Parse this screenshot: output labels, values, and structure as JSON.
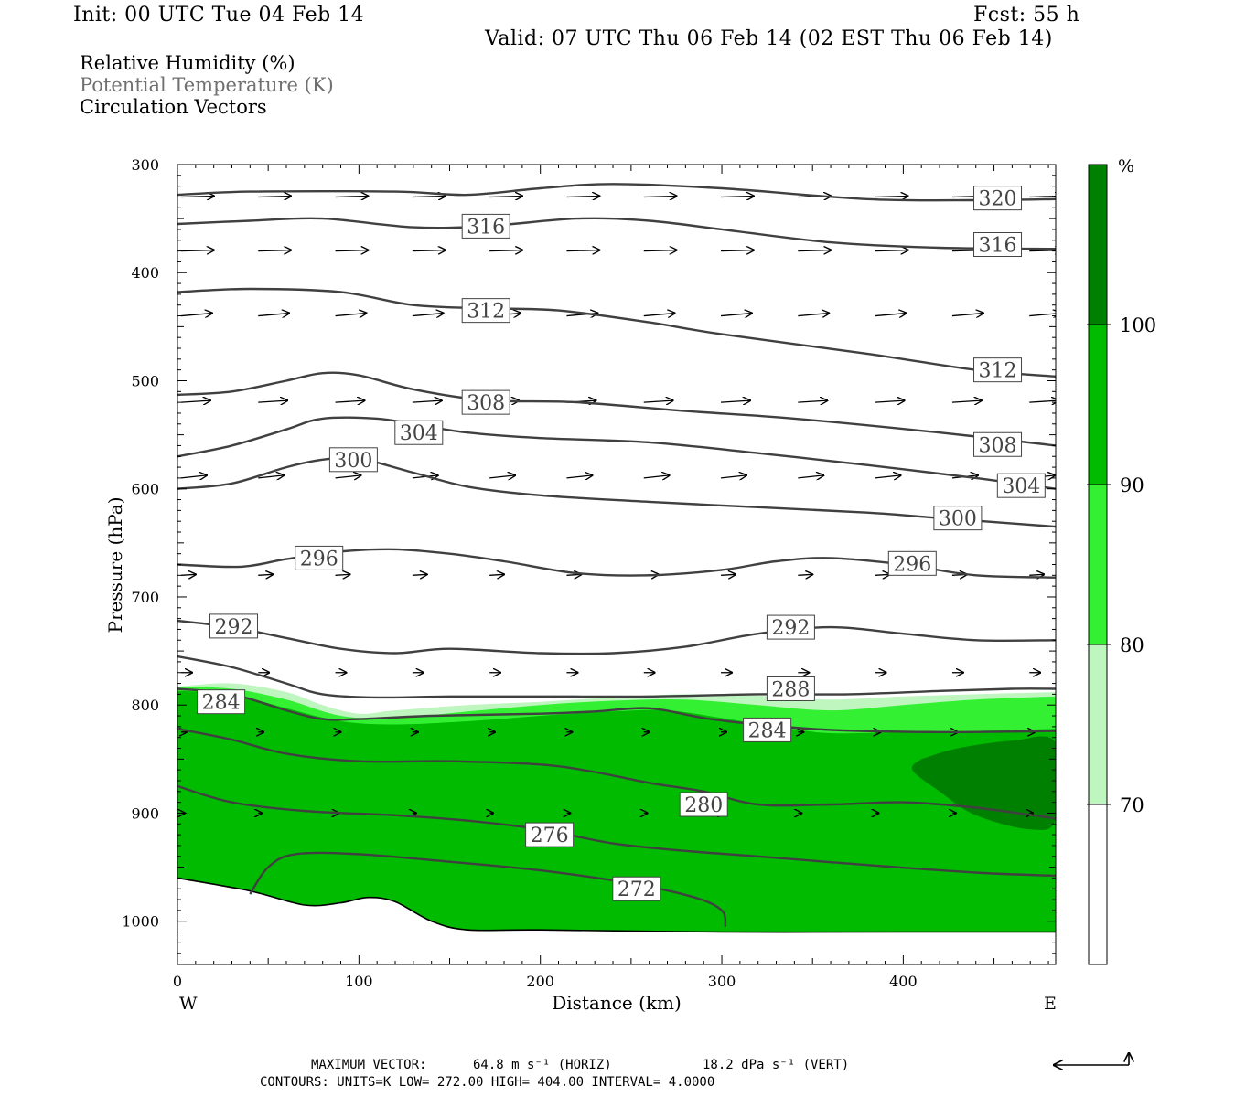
{
  "header": {
    "init": "Init: 00 UTC Tue 04 Feb 14",
    "fcst": "Fcst:   55 h",
    "valid": "Valid: 07 UTC Thu 06 Feb 14 (02 EST Thu 06 Feb 14)"
  },
  "fields": [
    {
      "label": "Relative Humidity (%)",
      "style": "normal"
    },
    {
      "label": "Potential Temperature (K)",
      "style": "grey"
    },
    {
      "label": "Circulation Vectors",
      "style": "normal"
    }
  ],
  "chart_data": {
    "type": "cross-section contour",
    "xlabel": "Distance (km)",
    "ylabel": "Pressure (hPa)",
    "xlim": [
      0,
      484
    ],
    "ylim": [
      1040,
      300
    ],
    "x_ticks": [
      0,
      100,
      200,
      300,
      400
    ],
    "y_ticks": [
      300,
      400,
      500,
      600,
      700,
      800,
      900,
      1000
    ],
    "x_end_labels": {
      "left": "W",
      "right": "E"
    },
    "colorbar": {
      "unit": "%",
      "levels": [
        70,
        80,
        90,
        100
      ],
      "colors": [
        "#ffffff",
        "#bff5bf",
        "#33f033",
        "#00bb00",
        "#008000"
      ]
    },
    "contour_color": "#404040",
    "theta_contours": [
      {
        "label": "320",
        "points": [
          [
            0,
            328
          ],
          [
            40,
            325
          ],
          [
            120,
            325
          ],
          [
            160,
            328
          ],
          [
            200,
            322
          ],
          [
            240,
            318
          ],
          [
            300,
            322
          ],
          [
            380,
            332
          ],
          [
            440,
            333
          ],
          [
            484,
            332
          ]
        ],
        "labels": [
          [
            452,
            331
          ]
        ]
      },
      {
        "label": "316",
        "points": [
          [
            0,
            355
          ],
          [
            40,
            352
          ],
          [
            80,
            350
          ],
          [
            130,
            358
          ],
          [
            170,
            357
          ],
          [
            220,
            350
          ],
          [
            260,
            352
          ],
          [
            300,
            360
          ],
          [
            360,
            372
          ],
          [
            420,
            377
          ],
          [
            484,
            378
          ]
        ],
        "labels": [
          [
            170,
            357
          ],
          [
            452,
            374
          ]
        ]
      },
      {
        "label": "312",
        "points": [
          [
            0,
            418
          ],
          [
            40,
            415
          ],
          [
            90,
            418
          ],
          [
            130,
            430
          ],
          [
            170,
            433
          ],
          [
            210,
            435
          ],
          [
            260,
            446
          ],
          [
            300,
            457
          ],
          [
            380,
            475
          ],
          [
            440,
            490
          ],
          [
            484,
            496
          ]
        ],
        "labels": [
          [
            170,
            435
          ],
          [
            452,
            490
          ]
        ]
      },
      {
        "label": "308",
        "points": [
          [
            0,
            513
          ],
          [
            30,
            510
          ],
          [
            60,
            500
          ],
          [
            80,
            493
          ],
          [
            100,
            495
          ],
          [
            130,
            508
          ],
          [
            170,
            518
          ],
          [
            220,
            520
          ],
          [
            280,
            528
          ],
          [
            340,
            535
          ],
          [
            420,
            548
          ],
          [
            484,
            560
          ]
        ],
        "labels": [
          [
            170,
            520
          ],
          [
            452,
            559
          ]
        ]
      },
      {
        "label": "304",
        "points": [
          [
            0,
            570
          ],
          [
            30,
            560
          ],
          [
            60,
            545
          ],
          [
            80,
            535
          ],
          [
            110,
            535
          ],
          [
            130,
            540
          ],
          [
            160,
            548
          ],
          [
            200,
            553
          ],
          [
            260,
            557
          ],
          [
            320,
            567
          ],
          [
            380,
            578
          ],
          [
            440,
            590
          ],
          [
            484,
            600
          ]
        ],
        "labels": [
          [
            133,
            548
          ],
          [
            465,
            597
          ]
        ]
      },
      {
        "label": "300",
        "points": [
          [
            0,
            600
          ],
          [
            30,
            595
          ],
          [
            60,
            580
          ],
          [
            80,
            573
          ],
          [
            100,
            572
          ],
          [
            130,
            585
          ],
          [
            160,
            598
          ],
          [
            200,
            606
          ],
          [
            260,
            612
          ],
          [
            320,
            617
          ],
          [
            380,
            622
          ],
          [
            420,
            627
          ],
          [
            460,
            632
          ],
          [
            484,
            635
          ]
        ],
        "labels": [
          [
            97,
            573
          ],
          [
            430,
            627
          ]
        ]
      },
      {
        "label": "296",
        "points": [
          [
            0,
            670
          ],
          [
            35,
            672
          ],
          [
            60,
            665
          ],
          [
            90,
            658
          ],
          [
            120,
            656
          ],
          [
            150,
            660
          ],
          [
            180,
            667
          ],
          [
            220,
            678
          ],
          [
            260,
            680
          ],
          [
            300,
            675
          ],
          [
            330,
            667
          ],
          [
            360,
            664
          ],
          [
            400,
            670
          ],
          [
            440,
            680
          ],
          [
            484,
            682
          ]
        ],
        "labels": [
          [
            78,
            664
          ],
          [
            405,
            669
          ]
        ]
      },
      {
        "label": "292",
        "points": [
          [
            0,
            722
          ],
          [
            30,
            728
          ],
          [
            60,
            738
          ],
          [
            90,
            748
          ],
          [
            120,
            752
          ],
          [
            150,
            748
          ],
          [
            200,
            752
          ],
          [
            240,
            752
          ],
          [
            280,
            746
          ],
          [
            320,
            734
          ],
          [
            360,
            728
          ],
          [
            400,
            734
          ],
          [
            440,
            740
          ],
          [
            484,
            740
          ]
        ],
        "labels": [
          [
            31,
            727
          ],
          [
            338,
            728
          ]
        ]
      },
      {
        "label": "288",
        "points": [
          [
            0,
            755
          ],
          [
            30,
            765
          ],
          [
            60,
            780
          ],
          [
            80,
            790
          ],
          [
            110,
            793
          ],
          [
            150,
            792
          ],
          [
            200,
            792
          ],
          [
            260,
            792
          ],
          [
            320,
            790
          ],
          [
            370,
            790
          ],
          [
            420,
            787
          ],
          [
            460,
            785
          ],
          [
            484,
            785
          ]
        ],
        "labels": [
          [
            338,
            785
          ]
        ]
      },
      {
        "label": "284",
        "points": [
          [
            0,
            785
          ],
          [
            30,
            790
          ],
          [
            60,
            805
          ],
          [
            80,
            813
          ],
          [
            100,
            813
          ],
          [
            140,
            810
          ],
          [
            200,
            808
          ],
          [
            230,
            806
          ],
          [
            260,
            803
          ],
          [
            290,
            812
          ],
          [
            320,
            818
          ],
          [
            360,
            823
          ],
          [
            420,
            825
          ],
          [
            484,
            824
          ]
        ],
        "labels": [
          [
            24,
            797
          ],
          [
            325,
            823
          ]
        ]
      },
      {
        "label": "280",
        "points": [
          [
            0,
            822
          ],
          [
            30,
            832
          ],
          [
            60,
            845
          ],
          [
            100,
            852
          ],
          [
            150,
            852
          ],
          [
            200,
            855
          ],
          [
            230,
            862
          ],
          [
            260,
            872
          ],
          [
            290,
            880
          ],
          [
            320,
            892
          ],
          [
            360,
            892
          ],
          [
            400,
            890
          ],
          [
            440,
            895
          ],
          [
            484,
            905
          ]
        ],
        "labels": [
          [
            290,
            892
          ]
        ]
      },
      {
        "label": "276",
        "points": [
          [
            0,
            875
          ],
          [
            30,
            890
          ],
          [
            70,
            898
          ],
          [
            120,
            902
          ],
          [
            160,
            907
          ],
          [
            200,
            915
          ],
          [
            240,
            928
          ],
          [
            280,
            935
          ],
          [
            320,
            940
          ],
          [
            380,
            948
          ],
          [
            440,
            955
          ],
          [
            484,
            958
          ]
        ],
        "labels": [
          [
            205,
            920
          ]
        ]
      },
      {
        "label": "272",
        "points": [
          [
            40,
            975
          ],
          [
            50,
            950
          ],
          [
            65,
            938
          ],
          [
            100,
            938
          ],
          [
            150,
            945
          ],
          [
            200,
            953
          ],
          [
            250,
            965
          ],
          [
            285,
            978
          ],
          [
            300,
            990
          ],
          [
            302,
            1005
          ]
        ],
        "labels": [
          [
            253,
            970
          ]
        ]
      }
    ],
    "rh_filled_boundaries": [
      {
        "level": "70",
        "points": [
          [
            0,
            783
          ],
          [
            30,
            780
          ],
          [
            60,
            788
          ],
          [
            80,
            800
          ],
          [
            100,
            808
          ],
          [
            120,
            805
          ],
          [
            160,
            800
          ],
          [
            200,
            797
          ],
          [
            240,
            793
          ],
          [
            280,
            790
          ],
          [
            330,
            792
          ],
          [
            360,
            795
          ],
          [
            400,
            792
          ],
          [
            440,
            790
          ],
          [
            484,
            788
          ]
        ]
      },
      {
        "level": "80",
        "points": [
          [
            0,
            783
          ],
          [
            30,
            785
          ],
          [
            60,
            795
          ],
          [
            90,
            810
          ],
          [
            120,
            812
          ],
          [
            160,
            806
          ],
          [
            200,
            800
          ],
          [
            240,
            796
          ],
          [
            280,
            795
          ],
          [
            320,
            800
          ],
          [
            360,
            805
          ],
          [
            400,
            800
          ],
          [
            440,
            795
          ],
          [
            484,
            792
          ]
        ]
      },
      {
        "level": "90",
        "points": [
          [
            0,
            787
          ],
          [
            30,
            790
          ],
          [
            60,
            803
          ],
          [
            90,
            815
          ],
          [
            120,
            818
          ],
          [
            160,
            815
          ],
          [
            200,
            810
          ],
          [
            240,
            806
          ],
          [
            270,
            805
          ],
          [
            300,
            812
          ],
          [
            330,
            820
          ],
          [
            360,
            826
          ],
          [
            400,
            825
          ],
          [
            440,
            824
          ],
          [
            484,
            822
          ]
        ]
      },
      {
        "level": "100",
        "points": [
          [
            410,
            850
          ],
          [
            430,
            840
          ],
          [
            460,
            833
          ],
          [
            484,
            835
          ],
          [
            484,
            905
          ],
          [
            470,
            915
          ],
          [
            440,
            902
          ],
          [
            420,
            880
          ],
          [
            405,
            860
          ]
        ]
      }
    ],
    "terrain_pressure": [
      [
        0,
        960
      ],
      [
        40,
        972
      ],
      [
        70,
        985
      ],
      [
        90,
        983
      ],
      [
        105,
        978
      ],
      [
        120,
        982
      ],
      [
        140,
        1000
      ],
      [
        160,
        1008
      ],
      [
        200,
        1008
      ],
      [
        300,
        1010
      ],
      [
        400,
        1010
      ],
      [
        484,
        1010
      ]
    ],
    "vectors_rows": [
      {
        "p": 330,
        "dx": 36,
        "dy": -1
      },
      {
        "p": 380,
        "dx": 36,
        "dy": -1
      },
      {
        "p": 440,
        "dx": 34,
        "dy": -3
      },
      {
        "p": 520,
        "dx": 32,
        "dy": -2
      },
      {
        "p": 590,
        "dx": 28,
        "dy": -3
      },
      {
        "p": 680,
        "dx": 16,
        "dy": -1
      },
      {
        "p": 770,
        "dx": 12,
        "dy": 0
      },
      {
        "p": 825,
        "dx": 6,
        "dy": 0
      },
      {
        "p": 900,
        "dx": 4,
        "dy": 0
      }
    ],
    "max_vector_label": "MAXIMUM VECTOR:",
    "max_vector_horiz": "64.8 m s⁻¹ (HORIZ)",
    "max_vector_vert": "18.2 dPa s⁻¹ (VERT)",
    "contours_line": "CONTOURS:  UNITS=K  LOW=  272.00      HIGH=  404.00      INTERVAL=    4.0000"
  }
}
